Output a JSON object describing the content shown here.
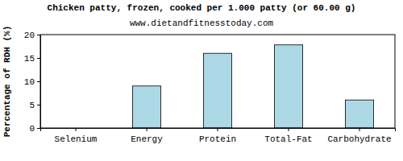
{
  "chart_data": {
    "type": "bar",
    "title": "Chicken patty, frozen, cooked per 1.000 patty (or 60.00 g)",
    "subtitle": "www.dietandfitnesstoday.com",
    "y_label": "Percentage of RDH (%)",
    "categories": [
      "Selenium",
      "Energy",
      "Protein",
      "Total-Fat",
      "Carbohydrate"
    ],
    "values": [
      0,
      9,
      16,
      17.8,
      6
    ],
    "color": "#add8e6",
    "ylim": [
      0,
      20
    ],
    "yticks": [
      0,
      5,
      10,
      15,
      20
    ],
    "grid": false
  }
}
